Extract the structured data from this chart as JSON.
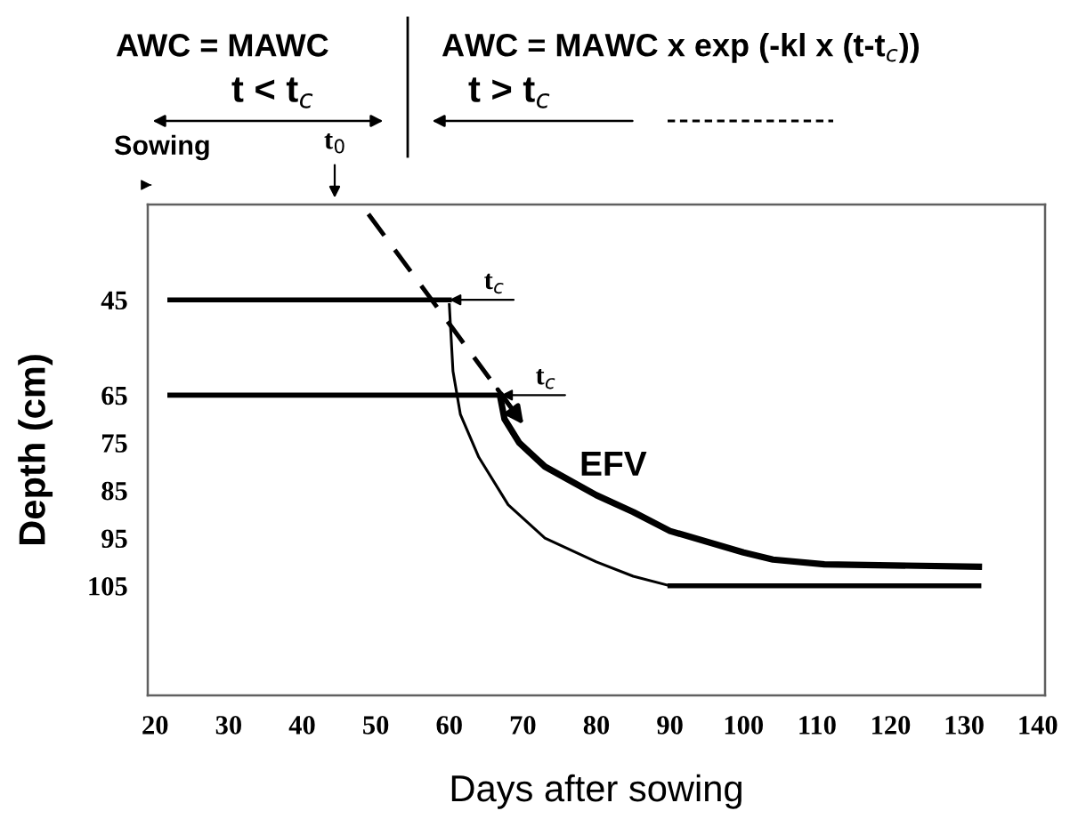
{
  "chart_data": {
    "type": "line",
    "xlabel": "Days after sowing",
    "ylabel": "Depth (cm)",
    "xlim": [
      19,
      141
    ],
    "ylim": [
      128,
      25
    ],
    "xticks": [
      20,
      30,
      40,
      50,
      60,
      70,
      80,
      90,
      100,
      110,
      120,
      130,
      140
    ],
    "yticks": [
      45,
      65,
      75,
      85,
      95,
      105
    ],
    "grid": false,
    "marker": "none",
    "series": [
      {
        "color": "#000000",
        "line_style": "solid",
        "x": [
          22,
          60
        ],
        "values": [
          45,
          45
        ]
      },
      {
        "color": "#000000",
        "line_style": "solid",
        "x": [
          60,
          60.5,
          61.5,
          64,
          68,
          73,
          80,
          85,
          90
        ],
        "values": [
          46,
          60,
          69,
          78,
          88,
          95,
          100,
          103,
          105
        ]
      },
      {
        "color": "#000000",
        "line_style": "solid",
        "x": [
          90,
          132
        ],
        "values": [
          105,
          105
        ]
      },
      {
        "color": "#000000",
        "line_style": "solid",
        "x": [
          22,
          67
        ],
        "values": [
          65,
          65
        ]
      },
      {
        "color": "#000000",
        "line_style": "solid",
        "x": [
          67,
          67.5,
          69.5,
          73,
          80,
          85,
          90,
          100,
          104,
          111,
          132
        ],
        "values": [
          66,
          70,
          75,
          80,
          86,
          89.5,
          93.5,
          98,
          99.5,
          100.5,
          101
        ]
      },
      {
        "color": "#000000",
        "line_style": "dashed",
        "x": [
          49,
          70.5
        ],
        "values": [
          27,
          72
        ]
      }
    ],
    "annotations": [
      "AWC = MAWC",
      "t < t$_{c}$",
      "AWC = MAWC x exp (-kl x (t-t$_{c}$))",
      "t > t$_{c}$",
      "Sowing",
      "t$_{0}$",
      {
        "text": "t$_{c}$",
        "x": 60,
        "y": 45
      },
      {
        "text": "t$_{c}$",
        "x": 67,
        "y": 65
      },
      {
        "text": "EFV",
        "x": 73,
        "y": 80
      }
    ]
  }
}
